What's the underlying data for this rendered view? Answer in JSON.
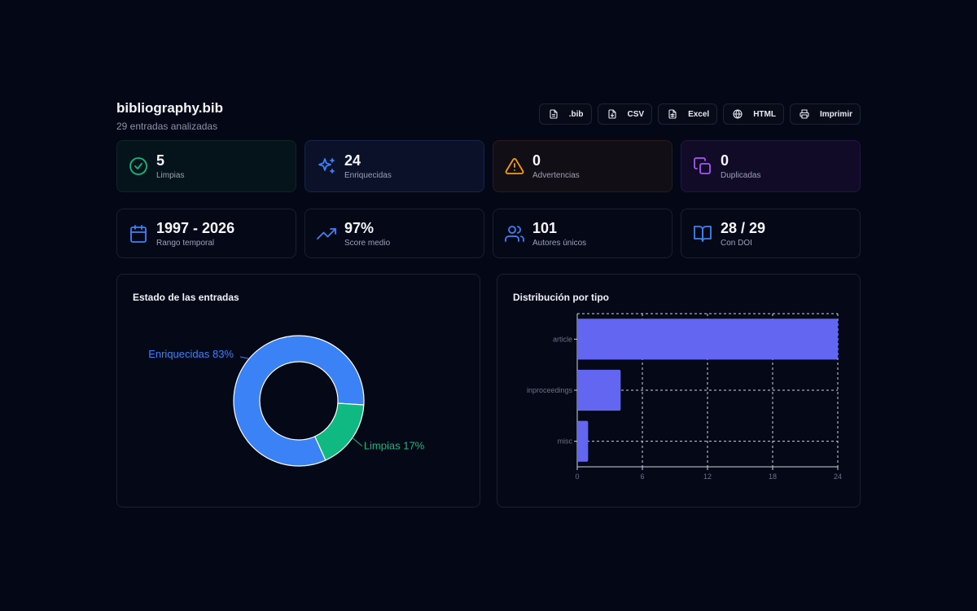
{
  "header": {
    "file_name": "bibliography.bib",
    "subtitle": "29 entradas analizadas"
  },
  "actions": [
    {
      "label": ".bib",
      "icon": "file-icon"
    },
    {
      "label": "CSV",
      "icon": "file-download-icon"
    },
    {
      "label": "Excel",
      "icon": "spreadsheet-icon"
    },
    {
      "label": "HTML",
      "icon": "globe-icon"
    },
    {
      "label": "Imprimir",
      "icon": "printer-icon"
    }
  ],
  "stats_primary": [
    {
      "value": "5",
      "label": "Limpias",
      "icon": "check-circle-icon",
      "color": "#10b981"
    },
    {
      "value": "24",
      "label": "Enriquecidas",
      "icon": "sparkles-icon",
      "color": "#3b82f6"
    },
    {
      "value": "0",
      "label": "Advertencias",
      "icon": "warning-icon",
      "color": "#f59e0b"
    },
    {
      "value": "0",
      "label": "Duplicadas",
      "icon": "copy-icon",
      "color": "#a855f7"
    }
  ],
  "stats_secondary": [
    {
      "value": "1997 - 2026",
      "label": "Rango temporal",
      "icon": "calendar-icon",
      "color": "#3b82f6"
    },
    {
      "value": "97%",
      "label": "Score medio",
      "icon": "trending-up-icon",
      "color": "#3b82f6"
    },
    {
      "value": "101",
      "label": "Autores únicos",
      "icon": "users-icon",
      "color": "#3b82f6"
    },
    {
      "value": "28 / 29",
      "label": "Con DOI",
      "icon": "book-open-icon",
      "color": "#3b82f6"
    }
  ],
  "panels": {
    "status_title": "Estado de las entradas",
    "type_title": "Distribución por tipo"
  },
  "chart_data": [
    {
      "type": "pie",
      "title": "Estado de las entradas",
      "donut": true,
      "slices": [
        {
          "label": "Enriquecidas 83%",
          "value": 24,
          "color": "#3b82f6"
        },
        {
          "label": "Limpias 17%",
          "value": 5,
          "color": "#10b981"
        }
      ]
    },
    {
      "type": "bar",
      "orientation": "horizontal",
      "title": "Distribución por tipo",
      "categories": [
        "article",
        "inproceedings",
        "misc"
      ],
      "values": [
        24,
        4,
        1
      ],
      "xlim": [
        0,
        24
      ],
      "xticks": [
        0,
        6,
        12,
        18,
        24
      ],
      "grid": true,
      "color": "#6366f1"
    }
  ]
}
